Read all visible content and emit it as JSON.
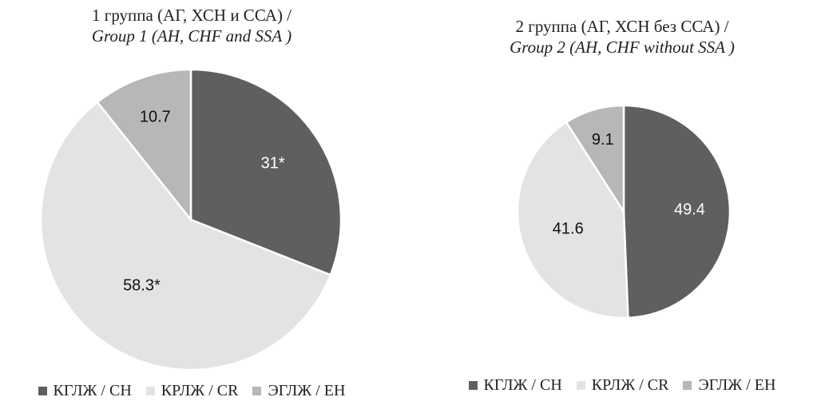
{
  "colors": {
    "ch": "#5f5f5f",
    "cr": "#e3e3e3",
    "eh": "#b7b7b7"
  },
  "chart_data": [
    {
      "type": "pie",
      "title": "1 группа (АГ, ХСН и ССА) /",
      "subtitle": "Group 1 (AH, CHF and SSA )",
      "categories": [
        "КГЛЖ / CH",
        "КРЛЖ / CR",
        "ЭГЛЖ / EH"
      ],
      "values": [
        31,
        58.3,
        10.7
      ],
      "labels": [
        "31*",
        "58.3*",
        "10.7"
      ],
      "legend": "bottom"
    },
    {
      "type": "pie",
      "title": "2 группа (АГ, ХСН без ССА) /",
      "subtitle": "Group 2 (AH, CHF without SSA )",
      "categories": [
        "КГЛЖ / CH",
        "КРЛЖ / CR",
        "ЭГЛЖ / EH"
      ],
      "values": [
        49.4,
        41.6,
        9.1
      ],
      "labels": [
        "49.4",
        "41.6",
        "9.1"
      ],
      "legend": "bottom"
    }
  ]
}
